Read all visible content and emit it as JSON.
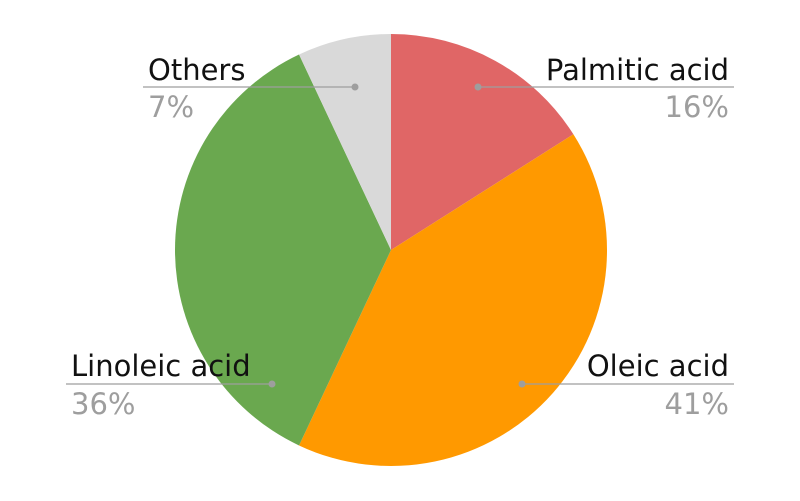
{
  "chart_data": {
    "type": "pie",
    "title": "",
    "start_angle_deg": 0,
    "direction": "clockwise",
    "slices": [
      {
        "name": "Palmitic acid",
        "value": 16,
        "label": "16%",
        "color": "#e06666"
      },
      {
        "name": "Oleic acid",
        "value": 41,
        "label": "41%",
        "color": "#ff9900"
      },
      {
        "name": "Linoleic acid",
        "value": 36,
        "label": "36%",
        "color": "#6aa84f"
      },
      {
        "name": "Others",
        "value": 7,
        "label": "7%",
        "color": "#d9d9d9"
      }
    ],
    "legend": "none",
    "label_style": "callout"
  }
}
